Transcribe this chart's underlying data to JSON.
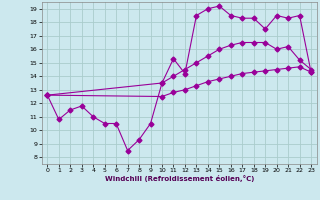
{
  "xlabel": "Windchill (Refroidissement éolien,°C)",
  "background_color": "#cce8ee",
  "grid_color": "#aacccc",
  "line_color": "#990099",
  "xlim": [
    -0.5,
    23.5
  ],
  "ylim": [
    7.5,
    19.5
  ],
  "xticks": [
    0,
    1,
    2,
    3,
    4,
    5,
    6,
    7,
    8,
    9,
    10,
    11,
    12,
    13,
    14,
    15,
    16,
    17,
    18,
    19,
    20,
    21,
    22,
    23
  ],
  "yticks": [
    8,
    9,
    10,
    11,
    12,
    13,
    14,
    15,
    16,
    17,
    18,
    19
  ],
  "line_zigzag_x": [
    0,
    1,
    2,
    3,
    4,
    5,
    6,
    7,
    8,
    9,
    10,
    11,
    12,
    13,
    14,
    15,
    16,
    17,
    18,
    19,
    20,
    21,
    22,
    23
  ],
  "line_zigzag_y": [
    12.6,
    10.8,
    11.5,
    11.8,
    11.0,
    10.5,
    10.5,
    8.5,
    9.3,
    10.5,
    13.5,
    15.3,
    14.2,
    18.5,
    19.0,
    19.2,
    18.5,
    18.3,
    18.3,
    17.5,
    18.5,
    18.3,
    18.5,
    14.3
  ],
  "line_top_x": [
    0,
    10,
    11,
    12,
    13,
    14,
    15,
    16,
    17,
    18,
    19,
    20,
    21,
    22,
    23
  ],
  "line_top_y": [
    12.6,
    13.5,
    14.0,
    14.5,
    15.0,
    15.5,
    16.0,
    16.3,
    16.5,
    16.5,
    16.5,
    16.0,
    16.2,
    15.2,
    14.5
  ],
  "line_bottom_x": [
    0,
    10,
    11,
    12,
    13,
    14,
    15,
    16,
    17,
    18,
    19,
    20,
    21,
    22,
    23
  ],
  "line_bottom_y": [
    12.6,
    12.5,
    12.8,
    13.0,
    13.3,
    13.6,
    13.8,
    14.0,
    14.2,
    14.3,
    14.4,
    14.5,
    14.6,
    14.7,
    14.3
  ],
  "markersize": 2.5,
  "lw": 0.8
}
